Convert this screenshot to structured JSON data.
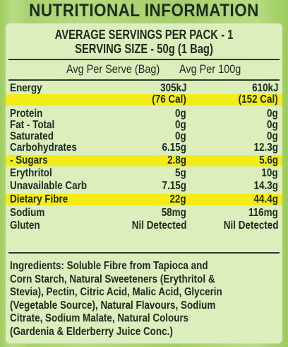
{
  "title": "NUTRITIONAL INFORMATION",
  "servings_per_pack": "AVERAGE SERVINGS PER PACK - 1",
  "serving_size": "SERVING SIZE - 50g (1 Bag)",
  "columns": {
    "per_serve": "Avg Per Serve (Bag)",
    "per_100g": "Avg Per 100g"
  },
  "rows": [
    {
      "label": "Energy",
      "serve": "305kJ",
      "per100": "610kJ",
      "highlight": false
    },
    {
      "label": "",
      "serve": "(76 Cal)",
      "per100": "(152 Cal)",
      "highlight": true
    },
    {
      "label": "Protein",
      "serve": "0g",
      "per100": "0g",
      "highlight": false
    },
    {
      "label": "Fat - Total",
      "serve": "0g",
      "per100": "0g",
      "highlight": false
    },
    {
      "label": "Saturated",
      "serve": "0g",
      "per100": "0g",
      "highlight": false
    },
    {
      "label": "Carbohydrates",
      "serve": "6.15g",
      "per100": "12.3g",
      "highlight": false
    },
    {
      "label": "- Sugars",
      "serve": "2.8g",
      "per100": "5.6g",
      "highlight": true
    },
    {
      "label": "Erythritol",
      "serve": "5g",
      "per100": "10g",
      "highlight": false
    },
    {
      "label": "Unavailable Carb",
      "serve": "7.15g",
      "per100": "14.3g",
      "highlight": false
    },
    {
      "label": "Dietary Fibre",
      "serve": "22g",
      "per100": "44.4g",
      "highlight": true
    },
    {
      "label": "Sodium",
      "serve": "58mg",
      "per100": "116mg",
      "highlight": false
    },
    {
      "label": "Gluten",
      "serve": "Nil Detected",
      "per100": "Nil Detected",
      "highlight": false
    }
  ],
  "ingredients": [
    "Ingredients: Soluble Fibre from Tapioca and",
    "Corn Starch, Natural Sweeteners (Erythritol &",
    "Stevia), Pectin, Citric Acid, Malic Acid, Glycerin",
    "(Vegetable Source), Natural Flavours, Sodium",
    "Citrate, Sodium Malate, Natural Colours",
    "(Gardenia & Elderberry Juice Conc.)"
  ],
  "colors": {
    "background": "#a9d36e",
    "panel": "#dbeebc",
    "highlight": "#f3ec17",
    "text": "#1c2a1f"
  }
}
